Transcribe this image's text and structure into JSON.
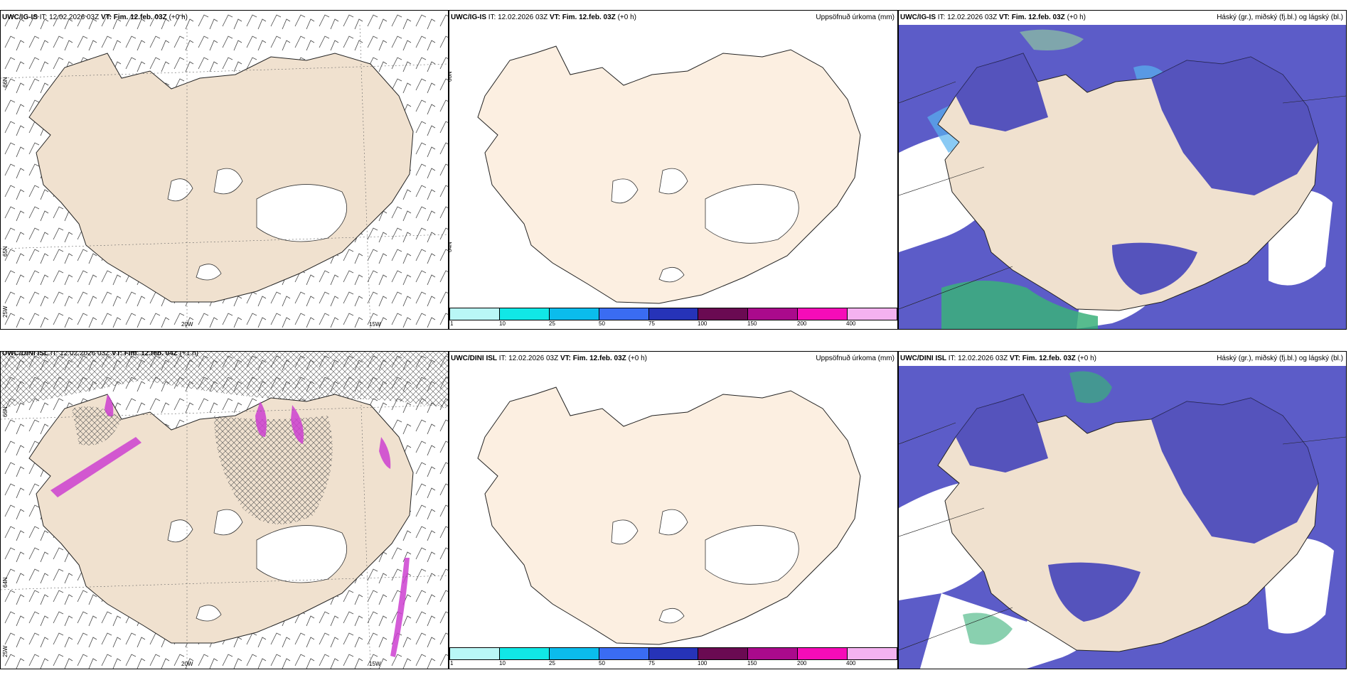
{
  "rows": [
    {
      "model": "UWC/IG-IS",
      "panels": {
        "wind": {
          "model": "UWC/IG-IS",
          "it": "IT: 12.02.2026 03Z",
          "vt_label": "VT:",
          "vt_value": "Fim. 12.feb. 03Z",
          "offset": "(+0 h)"
        },
        "precip": {
          "model": "UWC/IG-IS",
          "it": "IT: 12.02.2026 03Z",
          "vt_label": "VT:",
          "vt_value": "Fim. 12.feb. 03Z",
          "offset": "(+0 h)",
          "right": "Uppsöfnuð úrkoma (mm)"
        },
        "cloud": {
          "model": "UWC/IG-IS",
          "it": "IT: 12.02.2026 03Z",
          "vt_label": "VT:",
          "vt_value": "Fim. 12.feb. 03Z",
          "offset": "(+0 h)",
          "right": "Háský (gr.), miðský (fj.bl.) og lágský (bl.)"
        }
      }
    },
    {
      "model": "UWC/DINI ISL",
      "panels": {
        "wind": {
          "model": "UWC/DINI ISL",
          "it": "IT: 12.02.2026 03Z",
          "vt_label": "VT:",
          "vt_value": "Fim. 12.feb. 04Z",
          "offset": "(+1 h)"
        },
        "precip": {
          "model": "UWC/DINI ISL",
          "it": "IT: 12.02.2026 03Z",
          "vt_label": "VT:",
          "vt_value": "Fim. 12.feb. 03Z",
          "offset": "(+0 h)",
          "right": "Uppsöfnuð úrkoma (mm)"
        },
        "cloud": {
          "model": "UWC/DINI ISL",
          "it": "IT: 12.02.2026 03Z",
          "vt_label": "VT:",
          "vt_value": "Fim. 12.feb. 03Z",
          "offset": "(+0 h)",
          "right": "Háský (gr.), miðský (fj.bl.) og lágský (bl.)"
        }
      }
    }
  ],
  "axes": {
    "lat_66": "66N",
    "lat_64": "64N",
    "lat_65": "65N",
    "lat_63": "63N",
    "lon_25": "25W",
    "lon_20": "20W",
    "lon_15": "15W"
  },
  "colorbar": {
    "labels": [
      "1",
      "10",
      "25",
      "50",
      "75",
      "100",
      "150",
      "200",
      "400"
    ],
    "colors": [
      "#b9f7f6",
      "#11e7e6",
      "#0bbcec",
      "#3a6cf2",
      "#2633b8",
      "#6a0a52",
      "#aa0a8c",
      "#f50cb8",
      "#f4b2f0"
    ]
  },
  "colors": {
    "land": "#f0e1cf",
    "land_plain": "#fcefe1",
    "ocean_cloud": "#5c5cc8",
    "low_cloud_fringe": "#59b3f0",
    "mid_cloud": "#3ab07a",
    "convective": "#cc3fd0"
  }
}
